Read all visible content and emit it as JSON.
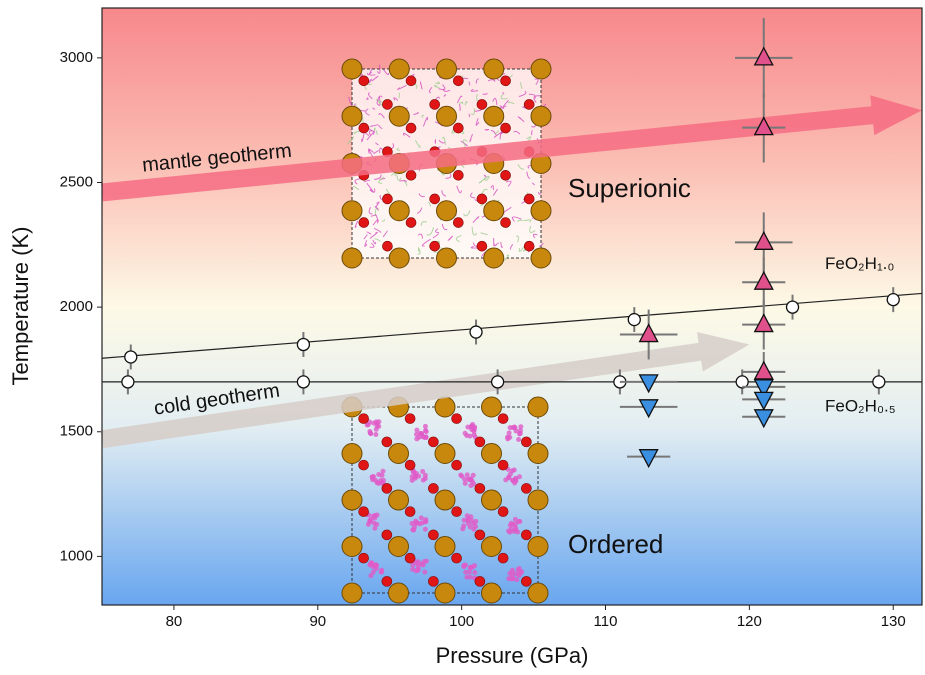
{
  "chart_data": {
    "type": "scatter",
    "xlabel": "Pressure (GPa)",
    "ylabel": "Temperature (K)",
    "xlim": [
      75,
      132
    ],
    "ylim": [
      805,
      3200
    ],
    "xticks": [
      80,
      90,
      100,
      110,
      120,
      130
    ],
    "yticks": [
      1000,
      1500,
      2000,
      2500,
      3000
    ],
    "series": [
      {
        "name": "FeO₂H₁.₀",
        "marker": "o",
        "color": "#ffffff",
        "x": [
          77,
          89,
          101,
          112,
          123,
          130
        ],
        "values": [
          1800,
          1850,
          1900,
          1950,
          2000,
          2030
        ],
        "xerr": [
          0,
          0,
          0,
          0,
          0,
          0
        ],
        "yerr": [
          50,
          50,
          50,
          50,
          50,
          50
        ]
      },
      {
        "name": "FeO₂H₀.₅",
        "marker": "o",
        "color": "#ffffff",
        "x": [
          76.8,
          89,
          102.5,
          111,
          119.5,
          129
        ],
        "values": [
          1700,
          1700,
          1700,
          1700,
          1700,
          1700
        ],
        "xerr": [
          0,
          0,
          0,
          0,
          0,
          0
        ],
        "yerr": [
          50,
          50,
          50,
          50,
          50,
          50
        ]
      },
      {
        "marker": "^",
        "color": "#e0508a",
        "x": [
          113,
          121,
          121,
          121,
          121,
          121,
          121
        ],
        "values": [
          1890,
          3000,
          2720,
          2260,
          2100,
          1930,
          1740
        ],
        "xerr": [
          2,
          2,
          1.5,
          2,
          1.5,
          1.5,
          1.5
        ],
        "yerr": [
          100,
          160,
          140,
          120,
          100,
          100,
          80
        ]
      },
      {
        "marker": "v",
        "color": "#3a8fe0",
        "x": [
          113,
          113,
          113,
          121,
          121,
          121
        ],
        "values": [
          1700,
          1600,
          1400,
          1680,
          1630,
          1560
        ],
        "xerr": [
          2,
          2,
          1.5,
          1.5,
          1.5,
          1.5
        ],
        "yerr": [
          0,
          0,
          0,
          0,
          0,
          0
        ]
      }
    ],
    "fits": [
      {
        "x": [
          75,
          132
        ],
        "values": [
          1795,
          2055
        ]
      },
      {
        "x": [
          75,
          132
        ],
        "values": [
          1700,
          1700
        ]
      }
    ],
    "arrows": [
      {
        "label": "mantle geotherm",
        "color": "#f56c82",
        "x": [
          75,
          132
        ],
        "values": [
          2460,
          2790
        ]
      },
      {
        "label": "cold geotherm",
        "color": "#d6cdc8",
        "x": [
          75,
          120
        ],
        "values": [
          1470,
          1850
        ]
      }
    ],
    "annotations": [
      "Superionic",
      "Ordered"
    ]
  }
}
